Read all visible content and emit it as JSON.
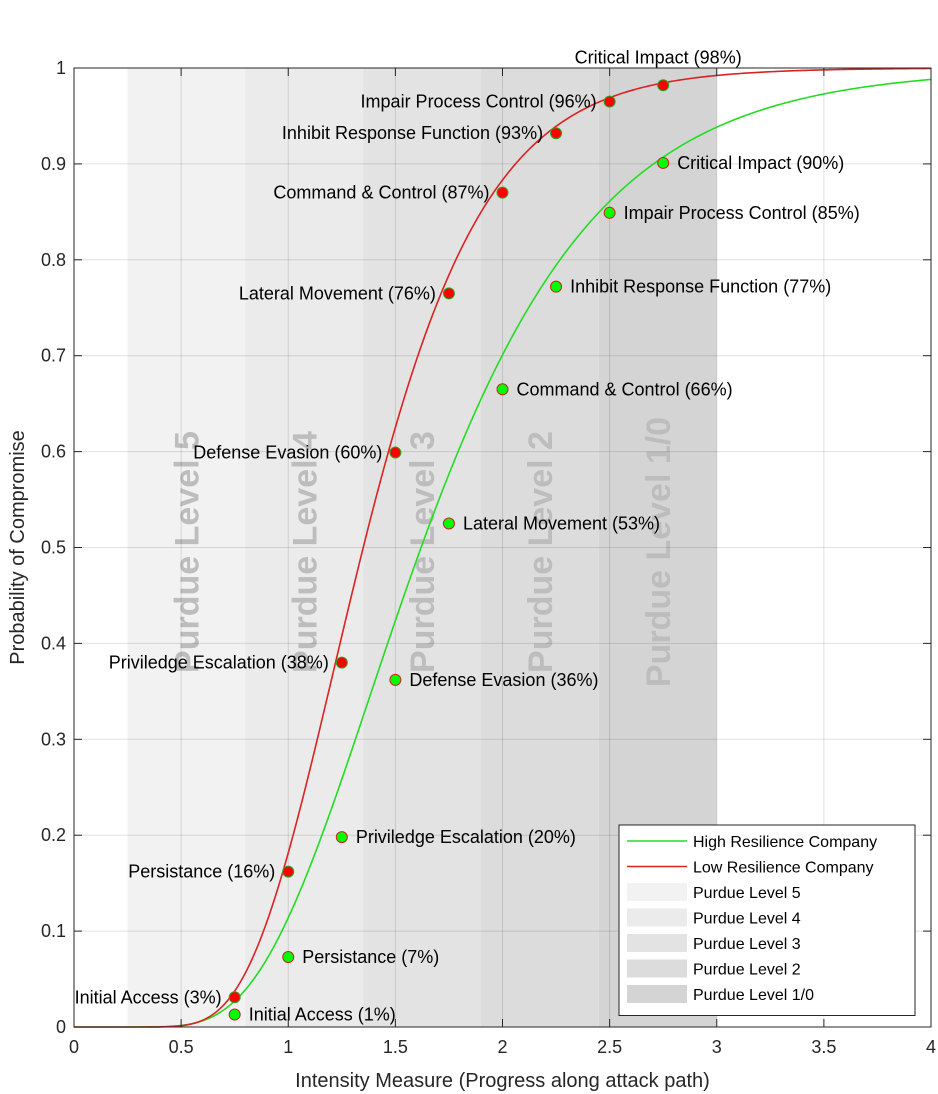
{
  "chart_data": {
    "type": "line",
    "xlabel": "Intensity Measure (Progress along attack path)",
    "ylabel": "Probability of Compromise",
    "xlim": [
      0,
      4
    ],
    "ylim": [
      0,
      1
    ],
    "x_ticks": [
      "0",
      "0.5",
      "1",
      "1.5",
      "2",
      "2.5",
      "3",
      "3.5",
      "4"
    ],
    "y_ticks": [
      "0",
      "0.1",
      "0.2",
      "0.3",
      "0.4",
      "0.5",
      "0.6",
      "0.7",
      "0.8",
      "0.9",
      "1"
    ],
    "grid": true,
    "legend_position": "bottom-right",
    "bands": [
      {
        "name": "Purdue Level 5",
        "x_start": 0.25,
        "x_end": 0.8,
        "color": "#f2f2f2"
      },
      {
        "name": "Purdue Level 4",
        "x_start": 0.8,
        "x_end": 1.35,
        "color": "#ebebeb"
      },
      {
        "name": "Purdue Level 3",
        "x_start": 1.35,
        "x_end": 1.9,
        "color": "#e3e3e3"
      },
      {
        "name": "Purdue Level 2",
        "x_start": 1.9,
        "x_end": 2.45,
        "color": "#dcdcdc"
      },
      {
        "name": "Purdue Level 1/0",
        "x_start": 2.45,
        "x_end": 3.0,
        "color": "#d4d4d4"
      }
    ],
    "series": [
      {
        "name": "High Resilience Company",
        "color": "#22dd22",
        "median": 1.62,
        "beta": 0.4,
        "points": [
          {
            "x": 0.75,
            "y": 0.013,
            "label": "Initial Access (1%)"
          },
          {
            "x": 1.0,
            "y": 0.073,
            "label": "Persistance (7%)"
          },
          {
            "x": 1.25,
            "y": 0.198,
            "label": "Priviledge Escalation (20%)"
          },
          {
            "x": 1.5,
            "y": 0.362,
            "label": "Defense Evasion (36%)"
          },
          {
            "x": 1.75,
            "y": 0.525,
            "label": "Lateral Movement (53%)"
          },
          {
            "x": 2.0,
            "y": 0.665,
            "label": "Command & Control (66%)"
          },
          {
            "x": 2.25,
            "y": 0.772,
            "label": "Inhibit Response Function (77%)"
          },
          {
            "x": 2.5,
            "y": 0.849,
            "label": "Impair Process Control (85%)"
          },
          {
            "x": 2.75,
            "y": 0.901,
            "label": "Critical Impact (90%)"
          }
        ]
      },
      {
        "name": "Low Resilience Company",
        "color": "#dd2222",
        "median": 1.35,
        "beta": 0.33,
        "points": [
          {
            "x": 0.75,
            "y": 0.031,
            "label": "Initial Access (3%)"
          },
          {
            "x": 1.0,
            "y": 0.162,
            "label": "Persistance (16%)"
          },
          {
            "x": 1.25,
            "y": 0.38,
            "label": "Priviledge Escalation (38%)"
          },
          {
            "x": 1.5,
            "y": 0.599,
            "label": "Defense Evasion (60%)"
          },
          {
            "x": 1.75,
            "y": 0.765,
            "label": "Lateral Movement (76%)"
          },
          {
            "x": 2.0,
            "y": 0.87,
            "label": "Command & Control (87%)"
          },
          {
            "x": 2.25,
            "y": 0.932,
            "label": "Inhibit Response Function (93%)"
          },
          {
            "x": 2.5,
            "y": 0.965,
            "label": "Impair Process Control (96%)"
          },
          {
            "x": 2.75,
            "y": 0.982,
            "label": "Critical Impact (98%)"
          }
        ]
      }
    ]
  }
}
